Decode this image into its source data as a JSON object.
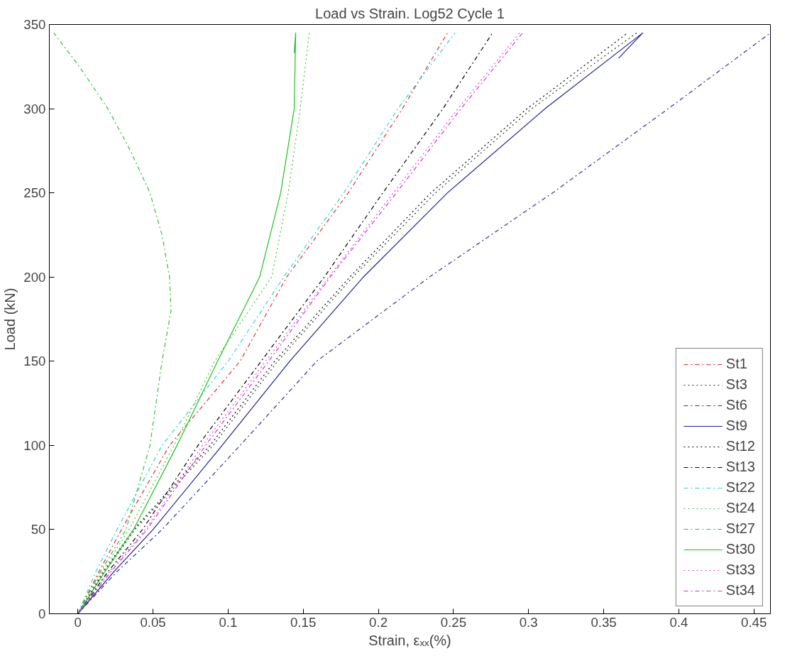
{
  "chart_data": {
    "type": "line",
    "title": "Load vs Strain. Log52 Cycle 1",
    "xlabel": "Strain, εₓₓ(%)",
    "ylabel": "Load (kN)",
    "xlim": [
      -0.019,
      0.461
    ],
    "ylim": [
      0,
      350
    ],
    "xticks": [
      0,
      0.05,
      0.1,
      0.15,
      0.2,
      0.25,
      0.3,
      0.35,
      0.4,
      0.45
    ],
    "yticks": [
      0,
      50,
      100,
      150,
      200,
      250,
      300,
      350
    ],
    "grid": false,
    "legend": "bottom right",
    "marker": "none",
    "series": [
      {
        "name": "St1",
        "color": "#e03030",
        "line_style": "dashdot",
        "x": [
          0,
          0.014,
          0.029,
          0.061,
          0.108,
          0.139,
          0.18,
          0.216,
          0.246
        ],
        "values": [
          0,
          25,
          50,
          100,
          150,
          200,
          250,
          300,
          345
        ]
      },
      {
        "name": "St3",
        "color": "#333333",
        "line_style": "dotted",
        "x": [
          0,
          0.018,
          0.038,
          0.09,
          0.133,
          0.183,
          0.238,
          0.302,
          0.372
        ],
        "values": [
          0,
          25,
          50,
          100,
          150,
          200,
          250,
          300,
          345
        ]
      },
      {
        "name": "St6",
        "color": "#3030a0",
        "line_style": "dashdot",
        "x": [
          0,
          0.026,
          0.056,
          0.108,
          0.159,
          0.234,
          0.316,
          0.393,
          0.461
        ],
        "values": [
          0,
          25,
          50,
          100,
          150,
          200,
          250,
          300,
          345
        ]
      },
      {
        "name": "St9",
        "color": "#202090",
        "line_style": "solid",
        "x": [
          0,
          0.024,
          0.05,
          0.096,
          0.141,
          0.19,
          0.246,
          0.311,
          0.376,
          0.36
        ],
        "values": [
          0,
          25,
          50,
          100,
          150,
          200,
          250,
          300,
          345,
          330
        ]
      },
      {
        "name": "St12",
        "color": "#000000",
        "line_style": "dotted",
        "x": [
          0,
          0.017,
          0.037,
          0.088,
          0.131,
          0.181,
          0.235,
          0.299,
          0.366
        ],
        "values": [
          0,
          25,
          50,
          100,
          150,
          200,
          250,
          300,
          345
        ]
      },
      {
        "name": "St13",
        "color": "#000000",
        "line_style": "dashdot",
        "x": [
          0,
          0.02,
          0.043,
          0.08,
          0.122,
          0.164,
          0.203,
          0.243,
          0.276
        ],
        "values": [
          0,
          25,
          50,
          100,
          150,
          200,
          250,
          300,
          345
        ]
      },
      {
        "name": "St22",
        "color": "#30d0d0",
        "line_style": "dashdot",
        "x": [
          0,
          0.012,
          0.026,
          0.056,
          0.1,
          0.137,
          0.177,
          0.213,
          0.251
        ],
        "values": [
          0,
          25,
          50,
          100,
          150,
          200,
          250,
          300,
          345
        ]
      },
      {
        "name": "St24",
        "color": "#40c040",
        "line_style": "dotted",
        "x": [
          0,
          0.016,
          0.034,
          0.064,
          0.091,
          0.129,
          0.14,
          0.148,
          0.154
        ],
        "values": [
          0,
          25,
          50,
          100,
          150,
          200,
          250,
          300,
          345
        ]
      },
      {
        "name": "St27",
        "color": "#30c030",
        "line_style": "dashdot",
        "x": [
          0,
          0.015,
          0.032,
          0.048,
          0.056,
          0.062,
          0.061,
          0.056,
          0.048,
          0.035,
          0.02,
          0.001,
          -0.016
        ],
        "values": [
          0,
          25,
          50,
          100,
          150,
          180,
          200,
          225,
          250,
          275,
          300,
          325,
          345
        ]
      },
      {
        "name": "St30",
        "color": "#20c020",
        "line_style": "solid",
        "x": [
          0,
          0.018,
          0.037,
          0.066,
          0.093,
          0.121,
          0.135,
          0.144,
          0.145,
          0.144
        ],
        "values": [
          0,
          25,
          50,
          100,
          150,
          200,
          250,
          300,
          345,
          333
        ]
      },
      {
        "name": "St33",
        "color": "#e040e0",
        "line_style": "dotted",
        "x": [
          0,
          0.021,
          0.045,
          0.083,
          0.125,
          0.167,
          0.21,
          0.253,
          0.294
        ],
        "values": [
          0,
          25,
          50,
          100,
          150,
          200,
          250,
          300,
          345
        ]
      },
      {
        "name": "St34",
        "color": "#d030d0",
        "line_style": "dashdot",
        "x": [
          0,
          0.022,
          0.046,
          0.085,
          0.127,
          0.168,
          0.212,
          0.255,
          0.296
        ],
        "values": [
          0,
          25,
          50,
          100,
          150,
          200,
          250,
          300,
          345
        ]
      }
    ]
  }
}
